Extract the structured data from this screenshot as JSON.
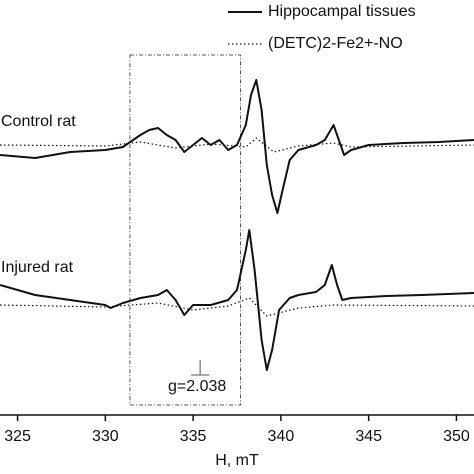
{
  "chart_data": {
    "type": "line",
    "xlabel": "H, mT",
    "xlim": [
      324,
      351
    ],
    "xticks": [
      325,
      330,
      335,
      340,
      345,
      350
    ],
    "ylim": [
      0,
      415
    ],
    "legend_position": "upper right",
    "legend": [
      {
        "name": "Hippocampal tissues",
        "color": "#111111",
        "style": "solid"
      },
      {
        "name": "(DETC)2-Fe2+-NO",
        "color": "#111111",
        "style": "dotted"
      }
    ],
    "groups": [
      {
        "label": "Control rat",
        "traces": [
          {
            "x": [
              324,
              326,
              328,
              330,
              331,
              332,
              332.5,
              333,
              333.5,
              334,
              334.5,
              335,
              335.5,
              336,
              336.5,
              337,
              337.5,
              338,
              338.3,
              338.6,
              338.9,
              339.2,
              339.5,
              339.8,
              340.1,
              340.5,
              341,
              342,
              342.5,
              343,
              343.3,
              343.6,
              344,
              345,
              347,
              349,
              351
            ],
            "values": [
              260,
              257,
              263,
              265,
              268,
              280,
              285,
              287,
              280,
              275,
              263,
              270,
              277,
              270,
              275,
              265,
              270,
              290,
              320,
              335,
              305,
              250,
              220,
              202,
              225,
              255,
              265,
              270,
              275,
              290,
              275,
              260,
              265,
              270,
              272,
              273,
              275
            ]
          },
          {
            "x": [
              324,
              330,
              332,
              334,
              336,
              338,
              338.6,
              339.6,
              341,
              343,
              344,
              351
            ],
            "values": [
              270,
              269,
              273,
              267,
              271,
              268,
              277,
              263,
              269,
              272,
              268,
              270
            ]
          }
        ]
      },
      {
        "label": "Injured rat",
        "traces": [
          {
            "x": [
              324,
              326,
              328,
              330,
              330.3,
              331,
              332,
              333,
              333.5,
              334,
              334.5,
              335,
              336,
              337,
              337.5,
              338,
              338.2,
              338.5,
              338.9,
              339.2,
              339.5,
              339.9,
              340.5,
              341,
              342,
              342.5,
              342.9,
              343.2,
              343.5,
              344,
              346,
              348,
              351
            ],
            "values": [
              130,
              120,
              115,
              110,
              107,
              112,
              117,
              120,
              125,
              115,
              100,
              110,
              110,
              115,
              125,
              165,
              185,
              145,
              75,
              45,
              65,
              105,
              117,
              120,
              123,
              130,
              150,
              130,
              115,
              117,
              119,
              120,
              122
            ]
          },
          {
            "x": [
              324,
              330,
              333,
              335,
              337,
              338.2,
              339.2,
              341,
              343,
              351
            ],
            "values": [
              110,
              108,
              112,
              105,
              109,
              117,
              99,
              107,
              110,
              109
            ]
          }
        ]
      }
    ],
    "box": [
      331.4,
      337.7
    ],
    "annotation": {
      "text": "g=2.038",
      "x": 335.4
    }
  }
}
